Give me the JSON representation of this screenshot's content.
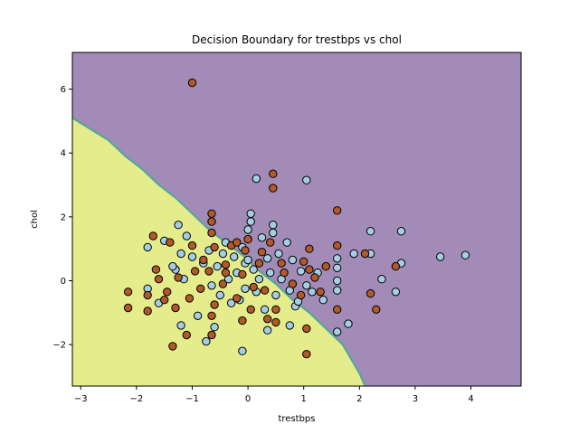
{
  "chart_data": {
    "type": "scatter",
    "title": "Decision Boundary for trestbps vs chol",
    "xlabel": "trestbps",
    "ylabel": "chol",
    "xlim": [
      -3.15,
      4.9
    ],
    "ylim": [
      -3.3,
      7.15
    ],
    "xticks": [
      -3,
      -2,
      -1,
      0,
      1,
      2,
      3,
      4
    ],
    "yticks": [
      -2,
      0,
      2,
      4,
      6
    ],
    "grid": false,
    "legend": "none",
    "colors": {
      "region_class_0": "#e4ec8c",
      "region_class_1": "#a28bb7",
      "boundary": "#4ca89a",
      "points_class_0": "#a6cee3",
      "points_class_1": "#b15928",
      "point_edge": "#000000"
    },
    "decision_boundary": {
      "x": [
        -3.15,
        -2.5,
        -2.2,
        -1.9,
        -1.6,
        -1.3,
        -1.0,
        -0.7,
        -0.4,
        -0.1,
        0.2,
        0.5,
        0.8,
        1.1,
        1.4,
        1.7,
        2.0,
        2.1
      ],
      "y": [
        5.1,
        4.4,
        3.9,
        3.5,
        3.0,
        2.6,
        2.1,
        1.6,
        1.2,
        0.8,
        0.3,
        -0.1,
        -0.6,
        -1.0,
        -1.5,
        -2.0,
        -2.9,
        -3.3
      ]
    },
    "series": [
      {
        "class": 0,
        "points": [
          [
            -1.8,
            1.05
          ],
          [
            -1.5,
            1.25
          ],
          [
            -1.25,
            1.75
          ],
          [
            -1.1,
            1.4
          ],
          [
            -1.2,
            0.85
          ],
          [
            -1.3,
            0.35
          ],
          [
            -1.0,
            0.75
          ],
          [
            -1.15,
            0.05
          ],
          [
            -0.8,
            0.55
          ],
          [
            -0.7,
            0.95
          ],
          [
            -0.65,
            -0.15
          ],
          [
            -0.55,
            0.45
          ],
          [
            -0.5,
            -0.45
          ],
          [
            -0.45,
            0.85
          ],
          [
            -0.4,
            1.2
          ],
          [
            -0.35,
            0.05
          ],
          [
            -0.3,
            -0.7
          ],
          [
            -0.2,
            0.25
          ],
          [
            -0.15,
            -0.6
          ],
          [
            -0.1,
            1.05
          ],
          [
            -0.05,
            0.55
          ],
          [
            -0.05,
            -0.25
          ],
          [
            0.0,
            1.6
          ],
          [
            0.0,
            0.65
          ],
          [
            0.05,
            2.1
          ],
          [
            0.05,
            1.85
          ],
          [
            0.1,
            0.35
          ],
          [
            0.15,
            -0.35
          ],
          [
            0.2,
            0.05
          ],
          [
            0.25,
            1.35
          ],
          [
            0.3,
            -0.9
          ],
          [
            0.35,
            0.7
          ],
          [
            0.4,
            0.25
          ],
          [
            0.45,
            1.75
          ],
          [
            0.45,
            1.5
          ],
          [
            0.5,
            -0.45
          ],
          [
            0.55,
            0.85
          ],
          [
            0.6,
            0.05
          ],
          [
            0.7,
            1.2
          ],
          [
            0.75,
            -0.3
          ],
          [
            0.8,
            0.65
          ],
          [
            0.85,
            -0.8
          ],
          [
            0.95,
            0.3
          ],
          [
            1.05,
            3.15
          ],
          [
            1.05,
            -0.15
          ],
          [
            1.15,
            -0.35
          ],
          [
            1.25,
            0.25
          ],
          [
            1.35,
            -0.6
          ],
          [
            0.15,
            3.2
          ],
          [
            1.6,
            0.7
          ],
          [
            1.6,
            0.4
          ],
          [
            1.6,
            0.0
          ],
          [
            1.6,
            -0.3
          ],
          [
            1.6,
            -1.6
          ],
          [
            1.8,
            -1.35
          ],
          [
            1.9,
            0.85
          ],
          [
            2.2,
            1.55
          ],
          [
            2.2,
            0.85
          ],
          [
            2.4,
            0.05
          ],
          [
            2.65,
            -0.35
          ],
          [
            2.75,
            1.55
          ],
          [
            2.75,
            0.55
          ],
          [
            3.45,
            0.75
          ],
          [
            3.9,
            0.8
          ],
          [
            -0.1,
            -2.2
          ],
          [
            -0.75,
            -1.9
          ],
          [
            -1.8,
            -0.25
          ],
          [
            -1.6,
            -0.7
          ],
          [
            -1.2,
            -1.4
          ],
          [
            -0.9,
            -1.1
          ],
          [
            -0.6,
            -1.45
          ],
          [
            0.35,
            -1.55
          ],
          [
            0.75,
            -1.4
          ],
          [
            -1.35,
            0.45
          ],
          [
            -0.25,
            0.75
          ],
          [
            0.9,
            -0.65
          ]
        ]
      },
      {
        "class": 1,
        "points": [
          [
            -1.0,
            6.2
          ],
          [
            0.45,
            3.35
          ],
          [
            0.45,
            2.9
          ],
          [
            1.6,
            2.2
          ],
          [
            -0.65,
            2.1
          ],
          [
            -0.65,
            1.85
          ],
          [
            -0.65,
            1.5
          ],
          [
            -0.3,
            1.1
          ],
          [
            -0.2,
            1.2
          ],
          [
            0.0,
            1.3
          ],
          [
            0.4,
            1.2
          ],
          [
            -1.4,
            1.2
          ],
          [
            -1.0,
            1.1
          ],
          [
            -1.7,
            1.4
          ],
          [
            1.1,
            1.0
          ],
          [
            1.6,
            1.1
          ],
          [
            2.1,
            0.85
          ],
          [
            2.65,
            0.45
          ],
          [
            1.4,
            0.45
          ],
          [
            1.0,
            0.6
          ],
          [
            1.1,
            0.35
          ],
          [
            0.6,
            0.55
          ],
          [
            0.25,
            0.9
          ],
          [
            -0.05,
            0.95
          ],
          [
            -0.6,
            1.05
          ],
          [
            -0.4,
            0.5
          ],
          [
            -0.7,
            0.3
          ],
          [
            -0.95,
            0.3
          ],
          [
            -1.25,
            0.1
          ],
          [
            -1.65,
            0.35
          ],
          [
            -1.45,
            -0.35
          ],
          [
            -1.8,
            -0.45
          ],
          [
            -2.15,
            -0.35
          ],
          [
            -2.15,
            -0.85
          ],
          [
            -1.8,
            -0.95
          ],
          [
            -1.5,
            -0.6
          ],
          [
            -1.3,
            -0.85
          ],
          [
            -1.05,
            -0.55
          ],
          [
            -0.85,
            -0.25
          ],
          [
            -0.6,
            -0.75
          ],
          [
            -0.45,
            -0.1
          ],
          [
            -0.2,
            -0.55
          ],
          [
            0.05,
            -0.9
          ],
          [
            0.1,
            -0.2
          ],
          [
            0.3,
            -0.3
          ],
          [
            0.5,
            -0.9
          ],
          [
            0.5,
            -1.3
          ],
          [
            0.8,
            -0.1
          ],
          [
            0.95,
            -0.45
          ],
          [
            1.2,
            0.1
          ],
          [
            1.3,
            -0.35
          ],
          [
            1.6,
            -0.9
          ],
          [
            2.2,
            -0.4
          ],
          [
            2.3,
            -0.9
          ],
          [
            1.05,
            -1.5
          ],
          [
            1.05,
            -2.3
          ],
          [
            -0.65,
            -1.1
          ],
          [
            -0.65,
            -1.7
          ],
          [
            -1.1,
            -1.7
          ],
          [
            -1.35,
            -2.05
          ],
          [
            -0.1,
            -1.25
          ],
          [
            0.35,
            -1.2
          ],
          [
            -0.4,
            0.25
          ],
          [
            -0.1,
            0.2
          ],
          [
            0.2,
            0.55
          ],
          [
            0.65,
            0.25
          ],
          [
            -0.8,
            0.65
          ],
          [
            -1.6,
            0.05
          ]
        ]
      }
    ]
  }
}
